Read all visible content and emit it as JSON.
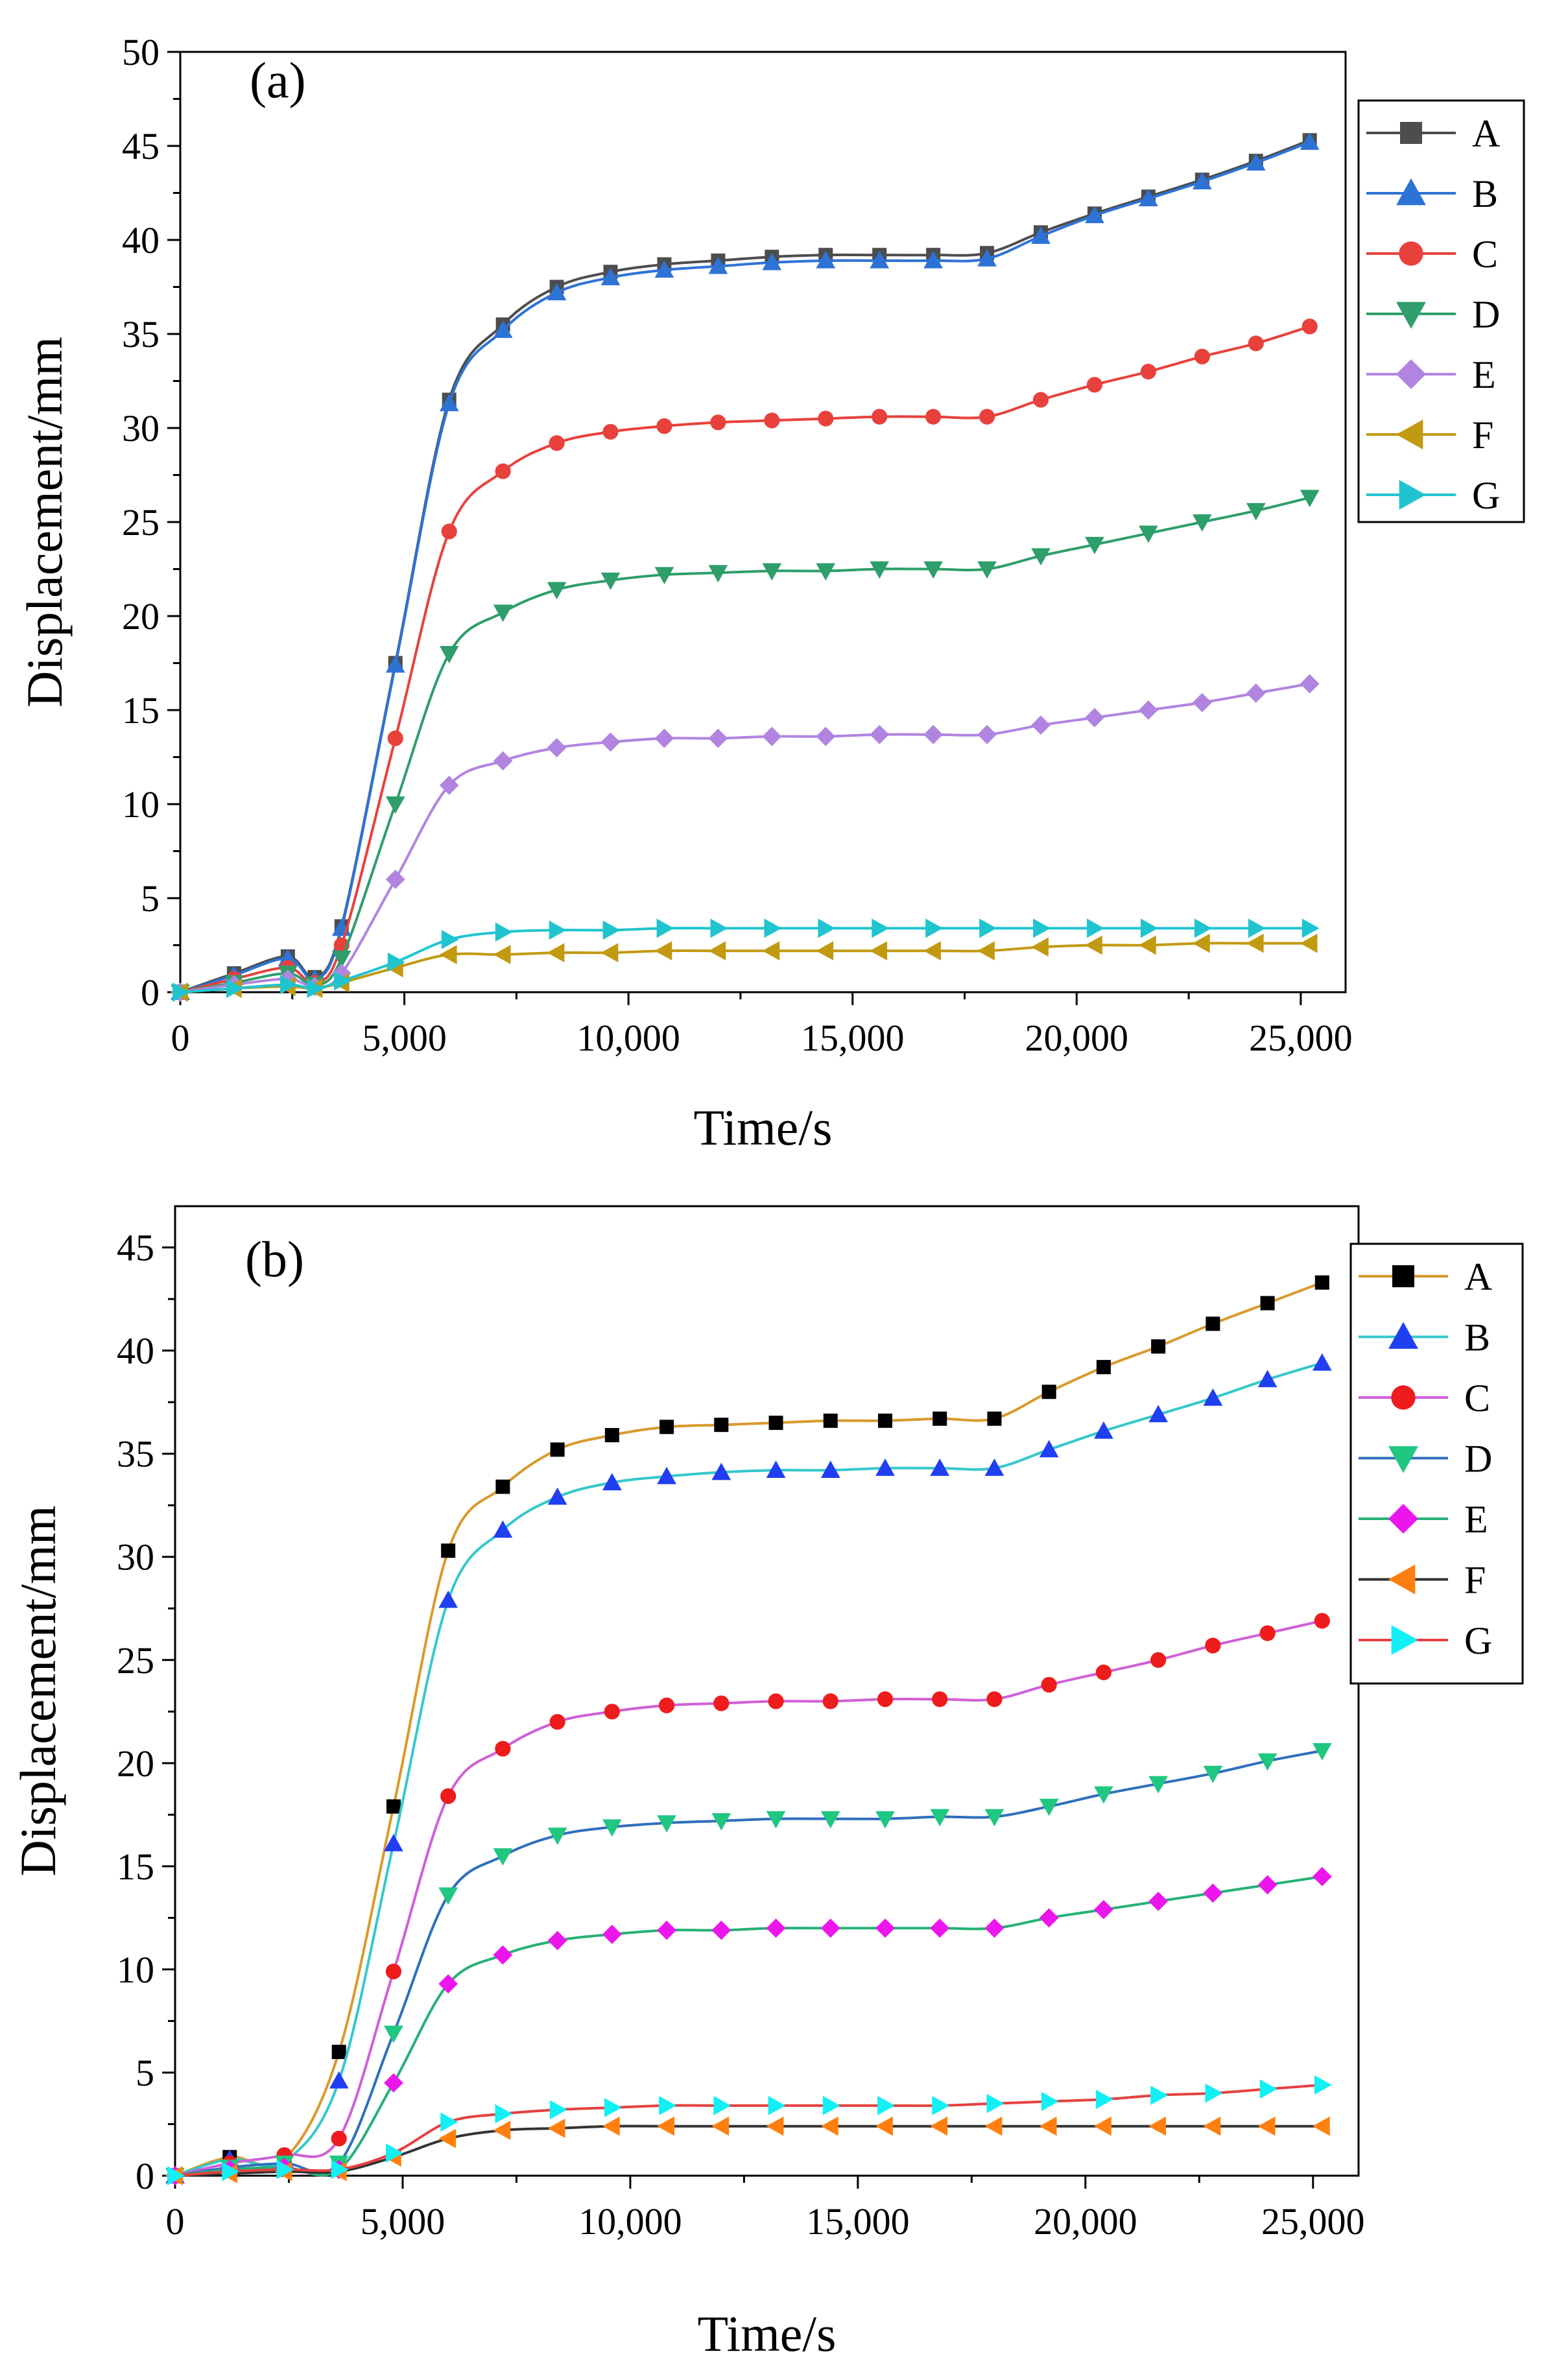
{
  "chart_data": [
    {
      "type": "line",
      "panel_label": "(a)",
      "xlabel": "Time/s",
      "ylabel": "Displacement/mm",
      "xlim": [
        0,
        26000
      ],
      "ylim": [
        0,
        50
      ],
      "xticks": [
        0,
        5000,
        10000,
        15000,
        20000,
        25000
      ],
      "xtick_labels": [
        "0",
        "5,000",
        "10,000",
        "15,000",
        "20,000",
        "25,000"
      ],
      "yticks": [
        0,
        5,
        10,
        15,
        20,
        25,
        30,
        35,
        40,
        45,
        50
      ],
      "ytick_labels": [
        "0",
        "5",
        "10",
        "15",
        "20",
        "25",
        "30",
        "35",
        "40",
        "45",
        "50"
      ],
      "legend_position": "top-right",
      "x": [
        0,
        1200,
        2400,
        3000,
        3600,
        4800,
        6000,
        7200,
        8400,
        9600,
        10800,
        12000,
        13200,
        14400,
        15600,
        16800,
        18000,
        19200,
        20400,
        21600,
        22800,
        24000,
        25200
      ],
      "series": [
        {
          "name": "A",
          "color": "#4d4d4d",
          "line_color": "#4d4d4d",
          "marker": "square",
          "values": [
            0,
            1.0,
            1.9,
            0.8,
            3.5,
            17.5,
            31.5,
            35.5,
            37.5,
            38.3,
            38.7,
            38.9,
            39.1,
            39.2,
            39.2,
            39.2,
            39.3,
            40.4,
            41.4,
            42.3,
            43.2,
            44.2,
            45.3
          ]
        },
        {
          "name": "B",
          "color": "#2d73d6",
          "line_color": "#2d73d6",
          "marker": "triangle-up",
          "values": [
            0,
            0.9,
            1.8,
            0.7,
            3.4,
            17.4,
            31.3,
            35.2,
            37.2,
            38.0,
            38.4,
            38.6,
            38.8,
            38.9,
            38.9,
            38.9,
            39.0,
            40.2,
            41.3,
            42.2,
            43.1,
            44.1,
            45.2
          ]
        },
        {
          "name": "C",
          "color": "#e8413c",
          "line_color": "#e8413c",
          "marker": "circle",
          "values": [
            0,
            0.7,
            1.3,
            0.5,
            2.5,
            13.5,
            24.5,
            27.7,
            29.2,
            29.8,
            30.1,
            30.3,
            30.4,
            30.5,
            30.6,
            30.6,
            30.6,
            31.5,
            32.3,
            33.0,
            33.8,
            34.5,
            35.4
          ]
        },
        {
          "name": "D",
          "color": "#2e9e6a",
          "line_color": "#2e9e6a",
          "marker": "triangle-down",
          "values": [
            0,
            0.5,
            1.0,
            0.4,
            1.8,
            10.0,
            18.0,
            20.2,
            21.4,
            21.9,
            22.2,
            22.3,
            22.4,
            22.4,
            22.5,
            22.5,
            22.5,
            23.2,
            23.8,
            24.4,
            25.0,
            25.6,
            26.3
          ]
        },
        {
          "name": "E",
          "color": "#b084e0",
          "line_color": "#b084e0",
          "marker": "diamond",
          "values": [
            0,
            0.4,
            0.7,
            0.3,
            1.0,
            6.0,
            11.0,
            12.3,
            13.0,
            13.3,
            13.5,
            13.5,
            13.6,
            13.6,
            13.7,
            13.7,
            13.7,
            14.2,
            14.6,
            15.0,
            15.4,
            15.9,
            16.4
          ]
        },
        {
          "name": "F",
          "color": "#c19a12",
          "line_color": "#c19a12",
          "marker": "triangle-left",
          "values": [
            0,
            0.2,
            0.3,
            0.2,
            0.5,
            1.3,
            2.0,
            2.0,
            2.1,
            2.1,
            2.2,
            2.2,
            2.2,
            2.2,
            2.2,
            2.2,
            2.2,
            2.4,
            2.5,
            2.5,
            2.6,
            2.6,
            2.6
          ]
        },
        {
          "name": "G",
          "color": "#1fc4cf",
          "line_color": "#1fc4cf",
          "marker": "triangle-right",
          "values": [
            0,
            0.2,
            0.4,
            0.2,
            0.6,
            1.6,
            2.8,
            3.2,
            3.3,
            3.3,
            3.4,
            3.4,
            3.4,
            3.4,
            3.4,
            3.4,
            3.4,
            3.4,
            3.4,
            3.4,
            3.4,
            3.4,
            3.4
          ]
        }
      ]
    },
    {
      "type": "line",
      "panel_label": "(b)",
      "xlabel": "Time/s",
      "ylabel": "Displacement/mm",
      "xlim": [
        0,
        26000
      ],
      "ylim": [
        0,
        47
      ],
      "xticks": [
        0,
        5000,
        10000,
        15000,
        20000,
        25000
      ],
      "xtick_labels": [
        "0",
        "5,000",
        "10,000",
        "15,000",
        "20,000",
        "25,000"
      ],
      "yticks": [
        0,
        5,
        10,
        15,
        20,
        25,
        30,
        35,
        40,
        45
      ],
      "ytick_labels": [
        "0",
        "5",
        "10",
        "15",
        "20",
        "25",
        "30",
        "35",
        "40",
        "45"
      ],
      "legend_position": "top-right",
      "x": [
        0,
        1200,
        2400,
        3600,
        4800,
        6000,
        7200,
        8400,
        9600,
        10800,
        12000,
        13200,
        14400,
        15600,
        16800,
        18000,
        19200,
        20400,
        21600,
        22800,
        24000,
        25200
      ],
      "series": [
        {
          "name": "A",
          "color": "#000000",
          "line_color": "#d99a2b",
          "marker": "square",
          "values": [
            0,
            0.9,
            0.8,
            6.0,
            17.9,
            30.3,
            33.4,
            35.2,
            35.9,
            36.3,
            36.4,
            36.5,
            36.6,
            36.6,
            36.7,
            36.7,
            38.0,
            39.2,
            40.2,
            41.3,
            42.3,
            43.3
          ]
        },
        {
          "name": "B",
          "color": "#1f3ff0",
          "line_color": "#35c8cc",
          "marker": "triangle-up",
          "values": [
            0,
            0.8,
            0.7,
            4.6,
            16.1,
            27.9,
            31.3,
            32.9,
            33.6,
            33.9,
            34.1,
            34.2,
            34.2,
            34.3,
            34.3,
            34.3,
            35.2,
            36.1,
            36.9,
            37.7,
            38.6,
            39.4
          ]
        },
        {
          "name": "C",
          "color": "#ee1c1c",
          "line_color": "#cf5fd8",
          "marker": "circle",
          "values": [
            0,
            0.6,
            1.0,
            1.8,
            9.9,
            18.4,
            20.7,
            22.0,
            22.5,
            22.8,
            22.9,
            23.0,
            23.0,
            23.1,
            23.1,
            23.1,
            23.8,
            24.4,
            25.0,
            25.7,
            26.3,
            26.9
          ]
        },
        {
          "name": "D",
          "color": "#1fc781",
          "line_color": "#2f6fbd",
          "marker": "triangle-down",
          "values": [
            0,
            0.4,
            0.6,
            0.6,
            6.9,
            13.6,
            15.5,
            16.5,
            16.9,
            17.1,
            17.2,
            17.3,
            17.3,
            17.3,
            17.4,
            17.4,
            17.9,
            18.5,
            19.0,
            19.5,
            20.1,
            20.6
          ]
        },
        {
          "name": "E",
          "color": "#ec16ec",
          "line_color": "#26b076",
          "marker": "diamond",
          "values": [
            0,
            0.3,
            0.4,
            0.3,
            4.5,
            9.3,
            10.7,
            11.4,
            11.7,
            11.9,
            11.9,
            12.0,
            12.0,
            12.0,
            12.0,
            12.0,
            12.5,
            12.9,
            13.3,
            13.7,
            14.1,
            14.5
          ]
        },
        {
          "name": "F",
          "color": "#ff7f0e",
          "line_color": "#333333",
          "marker": "triangle-left",
          "values": [
            0,
            0.1,
            0.2,
            0.2,
            0.9,
            1.8,
            2.2,
            2.3,
            2.4,
            2.4,
            2.4,
            2.4,
            2.4,
            2.4,
            2.4,
            2.4,
            2.4,
            2.4,
            2.4,
            2.4,
            2.4,
            2.4
          ]
        },
        {
          "name": "G",
          "color": "#10f0f5",
          "line_color": "#e64040",
          "marker": "triangle-right",
          "values": [
            0,
            0.2,
            0.3,
            0.3,
            1.1,
            2.6,
            3.0,
            3.2,
            3.3,
            3.4,
            3.4,
            3.4,
            3.4,
            3.4,
            3.4,
            3.5,
            3.6,
            3.7,
            3.9,
            4.0,
            4.2,
            4.4
          ]
        }
      ]
    }
  ]
}
